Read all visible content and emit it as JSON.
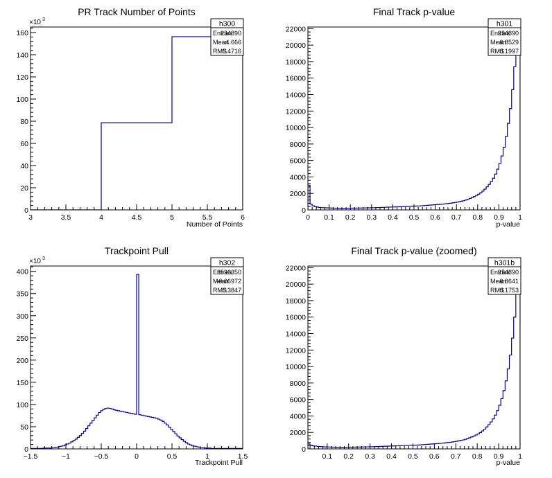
{
  "chart_data": [
    {
      "id": "h300",
      "type": "histogram",
      "title": "PR Track Number of Points",
      "xlabel": "Number of Points",
      "ylabel": "",
      "exponent_label": "×10",
      "exponent": "3",
      "xlim": [
        3,
        6
      ],
      "ylim": [
        0,
        165
      ],
      "xticks": [
        "3",
        "3.5",
        "4",
        "4.5",
        "5",
        "5.5",
        "6"
      ],
      "xtick_values": [
        3,
        3.5,
        4,
        4.5,
        5,
        5.5,
        6
      ],
      "yticks": [
        "0",
        "20",
        "40",
        "60",
        "80",
        "100",
        "120",
        "140",
        "160"
      ],
      "ytick_values": [
        0,
        20,
        40,
        60,
        80,
        100,
        120,
        140,
        160
      ],
      "bin_edges": [
        3,
        4,
        5,
        6
      ],
      "values": [
        0,
        78.6,
        156.3
      ],
      "stats": {
        "name": "h300",
        "rows": [
          {
            "label": "Entries",
            "value": "234890"
          },
          {
            "label": "Mean",
            "value": "4.666"
          },
          {
            "label": "RMS",
            "value": "0.4716"
          }
        ]
      }
    },
    {
      "id": "h301",
      "type": "histogram",
      "title": "Final Track p-value",
      "xlabel": "p-value",
      "ylabel": "",
      "xlim": [
        0,
        1
      ],
      "ylim": [
        0,
        22200
      ],
      "xticks": [
        "0",
        "0.1",
        "0.2",
        "0.3",
        "0.4",
        "0.5",
        "0.6",
        "0.7",
        "0.8",
        "0.9",
        "1"
      ],
      "xtick_values": [
        0,
        0.1,
        0.2,
        0.3,
        0.4,
        0.5,
        0.6,
        0.7,
        0.8,
        0.9,
        1
      ],
      "yticks": [
        "0",
        "2000",
        "4000",
        "6000",
        "8000",
        "10000",
        "12000",
        "14000",
        "16000",
        "18000",
        "20000",
        "22000"
      ],
      "ytick_values": [
        0,
        2000,
        4000,
        6000,
        8000,
        10000,
        12000,
        14000,
        16000,
        18000,
        20000,
        22000
      ],
      "bin_width": 0.01,
      "values": [
        3000,
        700,
        500,
        400,
        350,
        300,
        280,
        260,
        250,
        240,
        230,
        220,
        215,
        210,
        205,
        200,
        200,
        200,
        205,
        210,
        210,
        215,
        220,
        225,
        230,
        235,
        240,
        245,
        250,
        255,
        260,
        270,
        280,
        290,
        300,
        310,
        320,
        330,
        340,
        350,
        360,
        370,
        380,
        390,
        400,
        410,
        420,
        430,
        440,
        450,
        460,
        470,
        480,
        500,
        520,
        540,
        560,
        580,
        600,
        620,
        640,
        660,
        680,
        700,
        730,
        760,
        790,
        820,
        860,
        900,
        950,
        1000,
        1060,
        1120,
        1200,
        1300,
        1400,
        1500,
        1620,
        1750,
        1900,
        2080,
        2280,
        2520,
        2800,
        3100,
        3450,
        3850,
        4350,
        4950,
        5650,
        6550,
        7600,
        8900,
        10500,
        12300,
        14600,
        17400,
        20500,
        22500
      ],
      "stats": {
        "name": "h301",
        "rows": [
          {
            "label": "Entries",
            "value": "234890"
          },
          {
            "label": "Mean",
            "value": "0.8529"
          },
          {
            "label": "RMS",
            "value": "0.1997"
          }
        ]
      }
    },
    {
      "id": "h302",
      "type": "histogram",
      "title": "Trackpoint Pull",
      "xlabel": "Trackpoint Pull",
      "ylabel": "",
      "exponent_label": "×10",
      "exponent": "3",
      "xlim": [
        -1.5,
        1.5
      ],
      "ylim": [
        0,
        412
      ],
      "xticks": [
        "−1.5",
        "−1",
        "−0.5",
        "0",
        "0.5",
        "1",
        "1.5"
      ],
      "xtick_values": [
        -1.5,
        -1,
        -0.5,
        0,
        0.5,
        1,
        1.5
      ],
      "yticks": [
        "0",
        "50",
        "100",
        "150",
        "200",
        "250",
        "300",
        "350",
        "400"
      ],
      "ytick_values": [
        0,
        50,
        100,
        150,
        200,
        250,
        300,
        350,
        400
      ],
      "bin_width": 0.03,
      "values": [
        1,
        1,
        1,
        1,
        1,
        1,
        2,
        2,
        2,
        2,
        3,
        3,
        4,
        5,
        6,
        7,
        9,
        11,
        13,
        16,
        19,
        22,
        26,
        30,
        35,
        40,
        46,
        52,
        58,
        64,
        70,
        76,
        82,
        86,
        89,
        91,
        92,
        91,
        90,
        88,
        87,
        86,
        85,
        84,
        83,
        82,
        81,
        80,
        79,
        78,
        393,
        77,
        76,
        75,
        74,
        73,
        72,
        71,
        70,
        69,
        67,
        65,
        62,
        58,
        54,
        49,
        44,
        39,
        34,
        29,
        25,
        21,
        17,
        14,
        11,
        9,
        7,
        6,
        5,
        4,
        3,
        3,
        2,
        2,
        2,
        1,
        1,
        1,
        1,
        1,
        1,
        1,
        1,
        1,
        1,
        1,
        1,
        1,
        1,
        1
      ],
      "stats": {
        "name": "h302",
        "rows": [
          {
            "label": "Entries",
            "value": "3523350"
          },
          {
            "label": "Mean",
            "value": "−0.06972"
          },
          {
            "label": "RMS",
            "value": "0.3847"
          }
        ]
      }
    },
    {
      "id": "h301b",
      "type": "histogram",
      "title": "Final Track p-value (zoomed)",
      "xlabel": "p-value",
      "ylabel": "",
      "xlim": [
        0.01,
        1
      ],
      "ylim": [
        0,
        22200
      ],
      "xticks": [
        "0.1",
        "0.2",
        "0.3",
        "0.4",
        "0.5",
        "0.6",
        "0.7",
        "0.8",
        "0.9",
        "1"
      ],
      "xtick_values": [
        0.1,
        0.2,
        0.3,
        0.4,
        0.5,
        0.6,
        0.7,
        0.8,
        0.9,
        1
      ],
      "yticks": [
        "0",
        "2000",
        "4000",
        "6000",
        "8000",
        "10000",
        "12000",
        "14000",
        "16000",
        "18000",
        "20000",
        "22000"
      ],
      "ytick_values": [
        0,
        2000,
        4000,
        6000,
        8000,
        10000,
        12000,
        14000,
        16000,
        18000,
        20000,
        22000
      ],
      "bin_start": 0.01,
      "bin_width": 0.01,
      "values": [
        600,
        450,
        380,
        340,
        310,
        290,
        270,
        255,
        245,
        235,
        225,
        218,
        212,
        207,
        203,
        200,
        200,
        202,
        206,
        210,
        213,
        217,
        222,
        227,
        232,
        237,
        242,
        247,
        252,
        257,
        265,
        275,
        285,
        295,
        305,
        315,
        325,
        335,
        345,
        355,
        365,
        375,
        385,
        395,
        405,
        415,
        425,
        435,
        445,
        455,
        465,
        475,
        490,
        510,
        530,
        550,
        570,
        590,
        610,
        630,
        650,
        670,
        690,
        715,
        745,
        775,
        805,
        840,
        880,
        925,
        975,
        1030,
        1090,
        1160,
        1250,
        1350,
        1450,
        1560,
        1685,
        1825,
        1990,
        2180,
        2400,
        2660,
        2950,
        3275,
        3650,
        4100,
        4650,
        5300,
        6100,
        7075,
        8250,
        9700,
        11400,
        13450,
        16000,
        18900,
        21500
      ],
      "stats": {
        "name": "h301b",
        "rows": [
          {
            "label": "Entries",
            "value": "234890"
          },
          {
            "label": "Mean",
            "value": "0.8641"
          },
          {
            "label": "RMS",
            "value": "0.1753"
          }
        ]
      }
    }
  ]
}
